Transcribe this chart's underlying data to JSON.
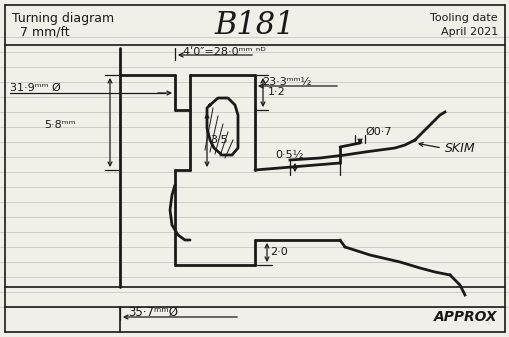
{
  "bg_color": "#f0efe8",
  "line_color": "#1a1a1a",
  "title_left1": "Turning diagram",
  "title_left2": "  7 mm/ft",
  "title_center": "B181",
  "title_right1": "Tooling date",
  "title_right2": "April 2021",
  "ruled_line_color": "#c8c8c0",
  "ruled_line_lw": 0.6,
  "border_lw": 1.2,
  "profile_lw": 2.0,
  "dim_lw": 0.9
}
